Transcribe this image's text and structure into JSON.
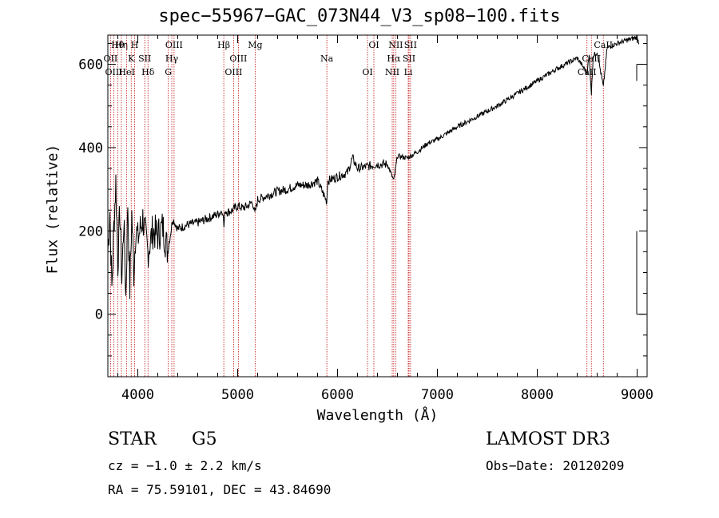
{
  "title": "spec−55967−GAC_073N44_V3_sp08−100.fits",
  "info": {
    "object_class": "STAR",
    "subclass": "G5",
    "survey": "LAMOST DR3",
    "cz": "cz = −1.0 ± 2.2 km/s",
    "obs_date": "Obs−Date: 20120209",
    "coords": "RA =  75.59101, DEC =  43.84690"
  },
  "chart_data": {
    "type": "line",
    "title": "spec−55967−GAC_073N44_V3_sp08−100.fits",
    "xlabel": "Wavelength (Å)",
    "ylabel": "Flux (relative)",
    "xlim": [
      3700,
      9100
    ],
    "ylim": [
      -150,
      670
    ],
    "xticks": [
      4000,
      5000,
      6000,
      7000,
      8000,
      9000
    ],
    "yticks": [
      0,
      200,
      400,
      600
    ],
    "series": [
      {
        "name": "flux",
        "x": [
          3700,
          3720,
          3740,
          3760,
          3780,
          3800,
          3820,
          3840,
          3860,
          3880,
          3900,
          3920,
          3940,
          3960,
          3980,
          4000,
          4050,
          4100,
          4150,
          4200,
          4250,
          4300,
          4350,
          4400,
          4500,
          4600,
          4700,
          4800,
          4850,
          4862,
          4875,
          4900,
          4950,
          5000,
          5050,
          5100,
          5150,
          5172,
          5200,
          5300,
          5400,
          5500,
          5600,
          5700,
          5800,
          5893,
          5900,
          6000,
          6100,
          6150,
          6200,
          6300,
          6400,
          6500,
          6563,
          6600,
          6700,
          6800,
          6900,
          7000,
          7200,
          7400,
          7600,
          7800,
          8000,
          8200,
          8400,
          8498,
          8520,
          8542,
          8560,
          8600,
          8662,
          8700,
          8800,
          8900,
          9000,
          9020
        ],
        "y": [
          150,
          250,
          60,
          210,
          320,
          120,
          250,
          80,
          230,
          40,
          270,
          60,
          240,
          100,
          210,
          180,
          230,
          150,
          200,
          190,
          210,
          150,
          230,
          205,
          215,
          220,
          230,
          240,
          250,
          210,
          250,
          245,
          250,
          260,
          255,
          260,
          270,
          240,
          275,
          285,
          295,
          300,
          310,
          310,
          320,
          270,
          320,
          330,
          340,
          375,
          350,
          355,
          360,
          360,
          320,
          380,
          375,
          390,
          410,
          420,
          450,
          475,
          500,
          530,
          560,
          590,
          615,
          580,
          620,
          530,
          620,
          630,
          545,
          640,
          650,
          658,
          665,
          650
        ]
      }
    ],
    "line_markers": [
      {
        "label": "Hθ",
        "wavelength": 3798
      },
      {
        "label": "OII",
        "wavelength": 3727
      },
      {
        "label": "OIII",
        "wavelength": 3760
      },
      {
        "label": "Hη",
        "wavelength": 3835
      },
      {
        "label": "K",
        "wavelength": 3934
      },
      {
        "label": "HeI",
        "wavelength": 3889
      },
      {
        "label": "H",
        "wavelength": 3968
      },
      {
        "label": "SII",
        "wavelength": 4070
      },
      {
        "label": "Hδ",
        "wavelength": 4102
      },
      {
        "label": "OIII",
        "wavelength": 4363
      },
      {
        "label": "Hγ",
        "wavelength": 4340
      },
      {
        "label": "G",
        "wavelength": 4305
      },
      {
        "label": "Hβ",
        "wavelength": 4861
      },
      {
        "label": "OIII",
        "wavelength": 5007
      },
      {
        "label": "OIII",
        "wavelength": 4959
      },
      {
        "label": "Mg",
        "wavelength": 5175
      },
      {
        "label": "Na",
        "wavelength": 5893
      },
      {
        "label": "OI",
        "wavelength": 6300
      },
      {
        "label": "OI",
        "wavelength": 6364
      },
      {
        "label": "Hα",
        "wavelength": 6563
      },
      {
        "label": "NII",
        "wavelength": 6548
      },
      {
        "label": "NII",
        "wavelength": 6583
      },
      {
        "label": "SII",
        "wavelength": 6716
      },
      {
        "label": "Li",
        "wavelength": 6708
      },
      {
        "label": "SII",
        "wavelength": 6731
      },
      {
        "label": "CaII",
        "wavelength": 8542
      },
      {
        "label": "CaII",
        "wavelength": 8498
      },
      {
        "label": "CaII",
        "wavelength": 8662
      }
    ]
  }
}
